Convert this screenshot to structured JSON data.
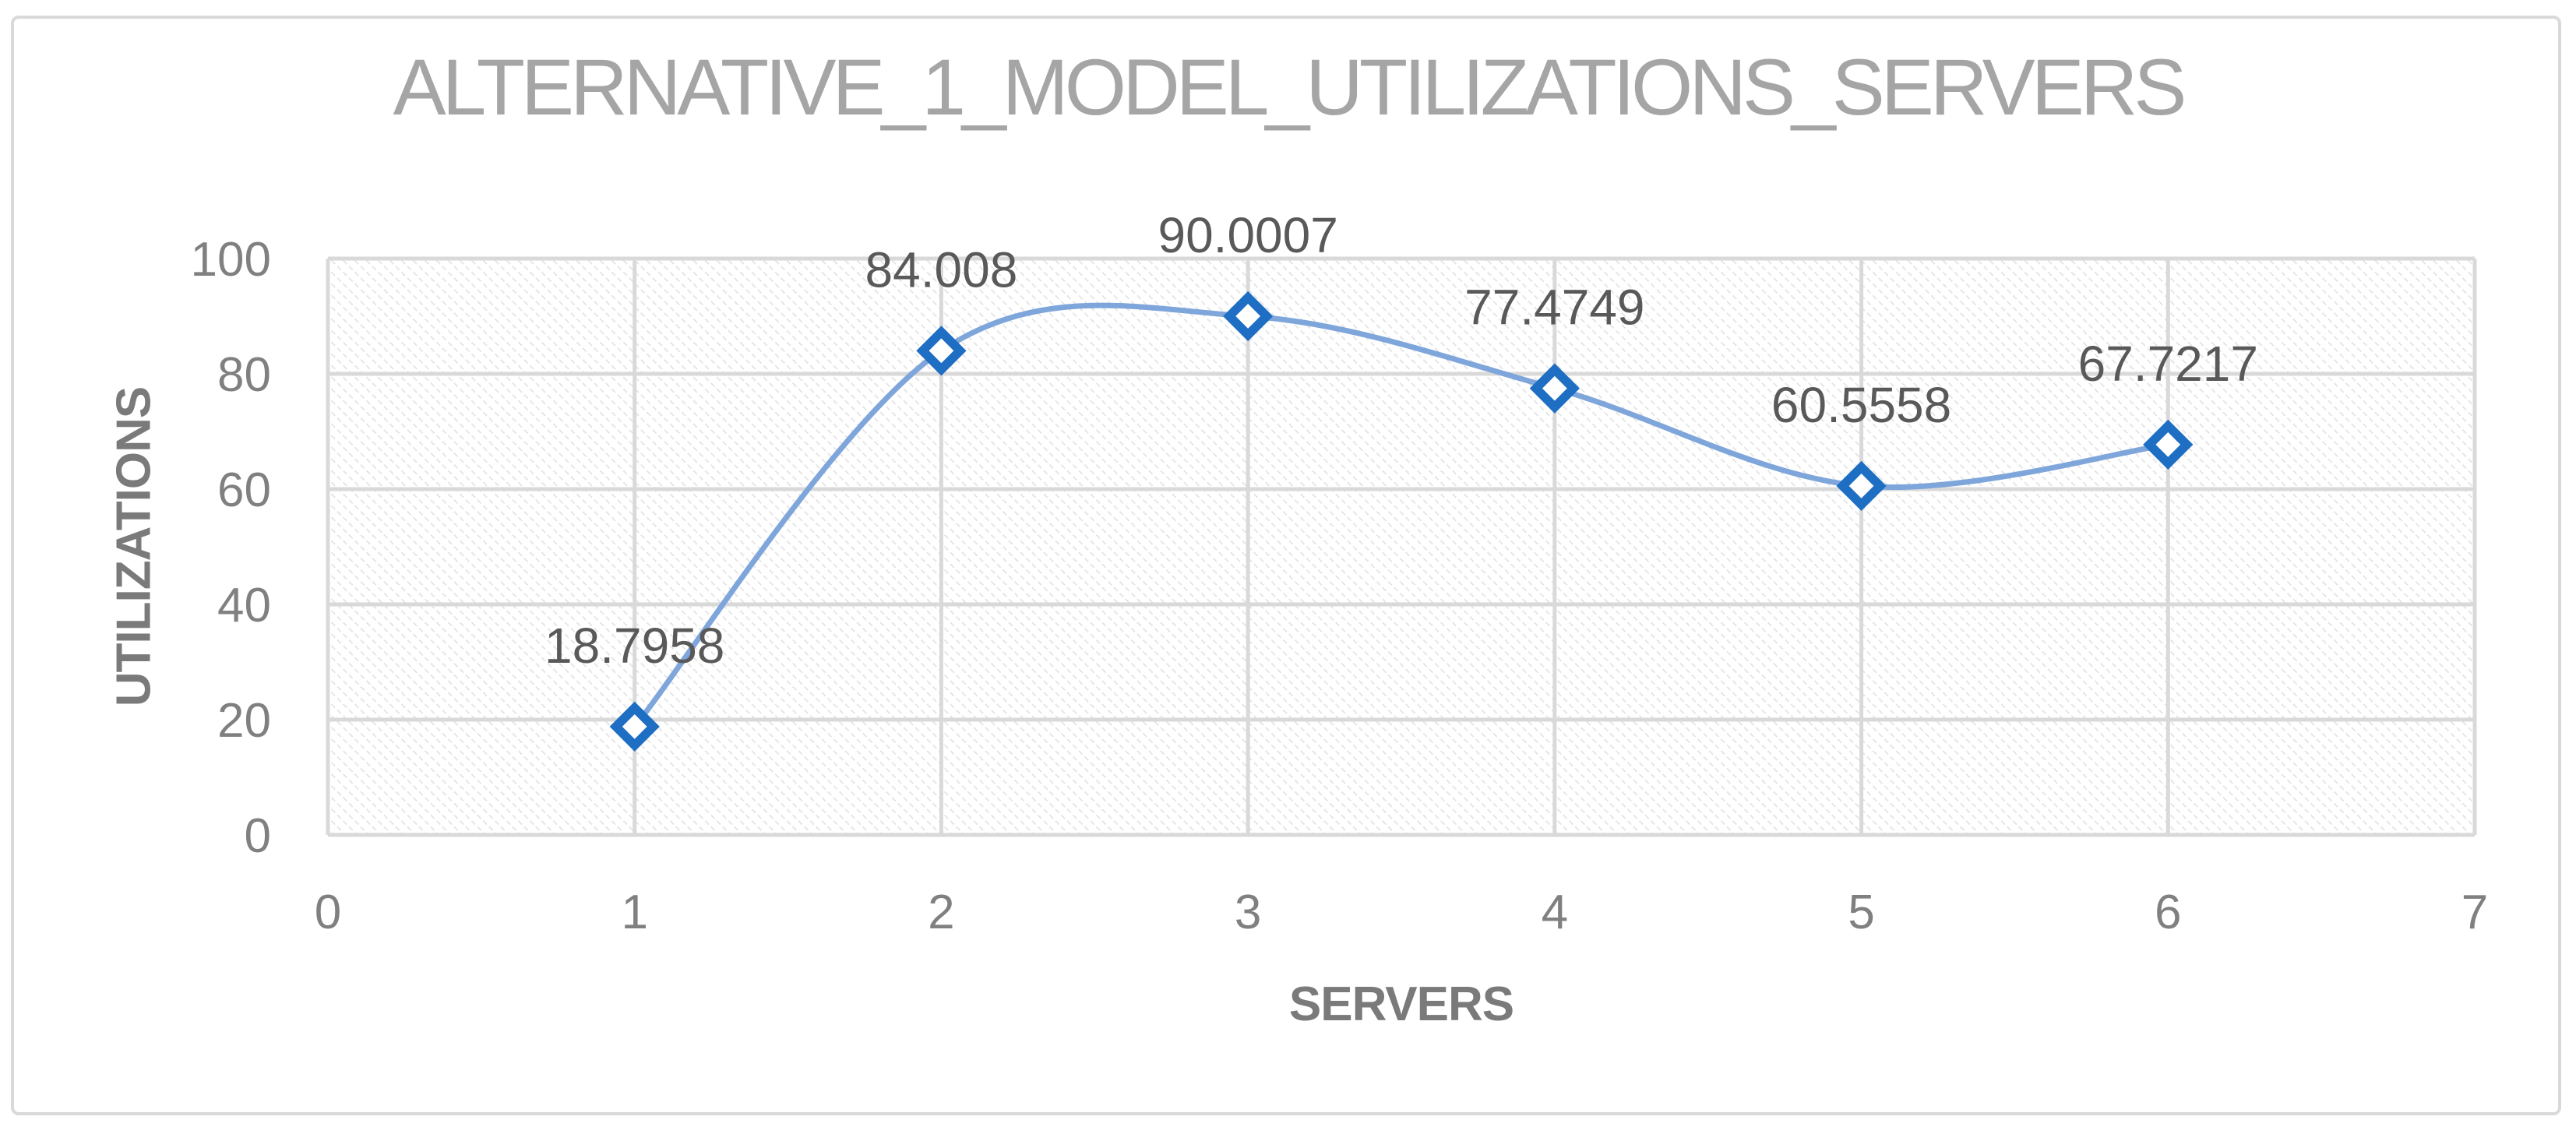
{
  "chart_data": {
    "type": "line",
    "title": "ALTERNATIVE_1_MODEL_UTILIZATIONS_SERVERS",
    "xlabel": "SERVERS",
    "ylabel": "UTILIZATIONS",
    "x": [
      1,
      2,
      3,
      4,
      5,
      6
    ],
    "values": [
      18.7958,
      84.008,
      90.0007,
      77.4749,
      60.5558,
      67.7217
    ],
    "point_labels": [
      "18.7958",
      "84.008",
      "90.0007",
      "77.4749",
      "60.5558",
      "67.7217"
    ],
    "xlim": [
      0,
      7
    ],
    "ylim": [
      0,
      100
    ],
    "x_ticks": [
      "0",
      "1",
      "2",
      "3",
      "4",
      "5",
      "6",
      "7"
    ],
    "y_ticks": [
      "0",
      "20",
      "40",
      "60",
      "80",
      "100"
    ],
    "grid": "both",
    "legend": "none",
    "line_style": "smooth",
    "marker": "open-diamond",
    "plot_fill": "light-downward-diagonal-hatch"
  },
  "colors": {
    "line": "#7FA6DB",
    "marker_stroke": "#1E6EC3",
    "marker_fill": "#FFFFFF",
    "gridline": "#D9D9D9",
    "hatch": "#E2E2E2",
    "chart_border": "#D9D9D9",
    "title_text": "#A5A5A5",
    "axis_title_text": "#7A7A7A",
    "tick_text": "#808080",
    "data_label_text": "#595959",
    "background": "#FFFFFF"
  }
}
